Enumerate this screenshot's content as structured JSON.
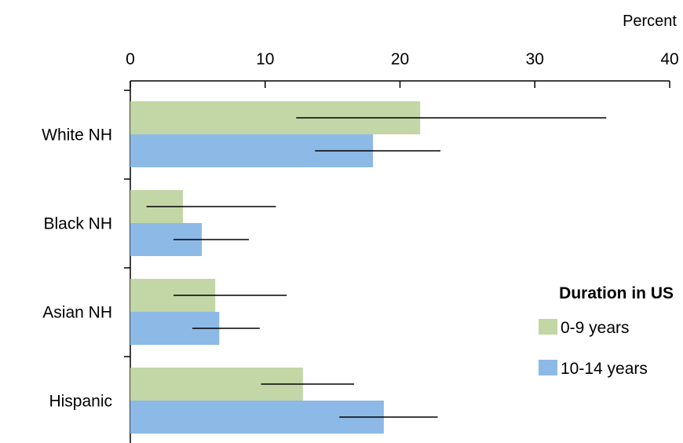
{
  "chart_data": {
    "type": "bar",
    "orientation": "horizontal",
    "unit_label": "Percent",
    "xlim": [
      0,
      40
    ],
    "x_ticks": [
      0,
      10,
      20,
      30,
      40
    ],
    "categories": [
      "White NH",
      "Black NH",
      "Asian NH",
      "Hispanic"
    ],
    "legend": {
      "title": "Duration in US",
      "placement": "right"
    },
    "series": [
      {
        "name": "0-9 years",
        "color": "#c3d6a6",
        "values": [
          21.5,
          3.9,
          6.3,
          12.8
        ],
        "error_low": [
          12.3,
          1.2,
          3.2,
          9.7
        ],
        "error_high": [
          35.3,
          10.8,
          11.6,
          16.6
        ]
      },
      {
        "name": "10-14 years",
        "color": "#8db9e6",
        "values": [
          18.0,
          5.3,
          6.6,
          18.8
        ],
        "error_low": [
          13.7,
          3.2,
          4.6,
          15.5
        ],
        "error_high": [
          23.0,
          8.8,
          9.6,
          22.8
        ]
      }
    ],
    "grid": false
  }
}
